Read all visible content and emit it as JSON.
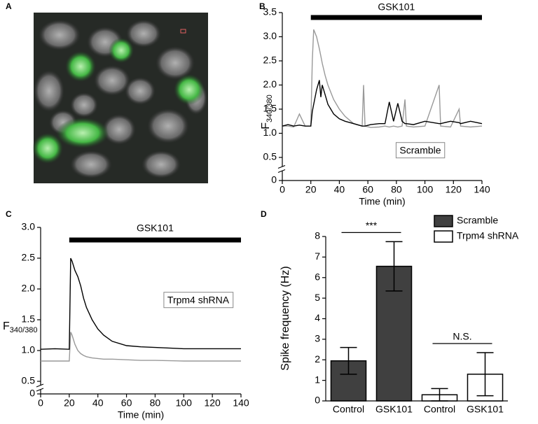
{
  "image_panel": {
    "panel_label": "A"
  },
  "chart_data": [
    {
      "type": "line",
      "panel_label": "B",
      "ylabel": "F",
      "ylabel_subscript": "340/380",
      "xlabel": "Time (min)",
      "annotation": "Scramble",
      "bar_annotation": {
        "text": "GSK101",
        "start": 20,
        "end": 140
      },
      "xlim": [
        0,
        140
      ],
      "xticks": [
        0,
        20,
        40,
        60,
        80,
        100,
        120,
        140
      ],
      "ylim": [
        0,
        3.5
      ],
      "ybreak": [
        0,
        0.5
      ],
      "yticks": [
        0,
        0.5,
        {
          "value": 1,
          "label": "1.0"
        },
        1.5,
        {
          "value": 2,
          "label": "2.0"
        },
        2.5,
        {
          "value": 3,
          "label": "3.0"
        },
        3.5
      ],
      "x": [
        0,
        4,
        8,
        12,
        16,
        20,
        21,
        22,
        24,
        26,
        27,
        28,
        30,
        32,
        36,
        40,
        44,
        50,
        56,
        57,
        58,
        62,
        68,
        72,
        75,
        78,
        81,
        84,
        86,
        87,
        92,
        100,
        110,
        111,
        118,
        124,
        125,
        132,
        140
      ],
      "series": [
        {
          "color": "#999999",
          "values": [
            1.15,
            1.15,
            1.13,
            1.4,
            1.15,
            1.15,
            2.5,
            3.15,
            3.0,
            2.75,
            2.6,
            2.45,
            2.2,
            2.0,
            1.7,
            1.5,
            1.35,
            1.2,
            1.15,
            2.0,
            1.15,
            1.12,
            1.13,
            1.15,
            1.13,
            1.15,
            1.13,
            1.15,
            1.7,
            1.15,
            1.13,
            1.15,
            2.0,
            1.15,
            1.13,
            1.5,
            1.15,
            1.13,
            1.15
          ]
        },
        {
          "color": "#000000",
          "values": [
            1.15,
            1.18,
            1.15,
            1.17,
            1.15,
            1.15,
            1.45,
            1.6,
            1.9,
            2.1,
            1.75,
            2.0,
            1.8,
            1.6,
            1.4,
            1.3,
            1.25,
            1.2,
            1.15,
            1.15,
            1.15,
            1.18,
            1.2,
            1.2,
            1.65,
            1.25,
            1.62,
            1.25,
            1.2,
            1.2,
            1.18,
            1.25,
            1.2,
            1.2,
            1.25,
            1.22,
            1.2,
            1.25,
            1.2
          ]
        }
      ]
    },
    {
      "type": "line",
      "panel_label": "C",
      "ylabel": "F",
      "ylabel_subscript": "340/380",
      "xlabel": "Time (min)",
      "annotation": "Trpm4 shRNA",
      "bar_annotation": {
        "text": "GSK101",
        "start": 20,
        "end": 140
      },
      "xlim": [
        0,
        140
      ],
      "xticks": [
        0,
        20,
        40,
        60,
        80,
        100,
        120,
        140
      ],
      "ylim": [
        0,
        3
      ],
      "ybreak": [
        0,
        0.5
      ],
      "yticks": [
        0,
        0.5,
        {
          "value": 1,
          "label": "1.0"
        },
        1.5,
        {
          "value": 2,
          "label": "2.0"
        },
        2.5,
        {
          "value": 3,
          "label": "3.0"
        }
      ],
      "x": [
        0,
        10,
        20,
        21,
        22,
        24,
        26,
        28,
        30,
        32,
        36,
        40,
        44,
        50,
        60,
        70,
        80,
        100,
        120,
        140
      ],
      "series": [
        {
          "color": "#999999",
          "values": [
            0.83,
            0.83,
            0.83,
            1.3,
            1.25,
            1.1,
            1.0,
            0.95,
            0.92,
            0.9,
            0.88,
            0.87,
            0.86,
            0.86,
            0.85,
            0.84,
            0.84,
            0.83,
            0.83,
            0.83
          ]
        },
        {
          "color": "#000000",
          "values": [
            1.02,
            1.03,
            1.02,
            2.5,
            2.45,
            2.3,
            2.2,
            2.05,
            1.85,
            1.7,
            1.5,
            1.35,
            1.25,
            1.15,
            1.08,
            1.06,
            1.05,
            1.03,
            1.03,
            1.03
          ]
        }
      ]
    },
    {
      "type": "bar",
      "panel_label": "D",
      "ylabel": "Spike frequency (Hz)",
      "categories": [
        "Control",
        "GSK101",
        "Control",
        "GSK101"
      ],
      "ylim": [
        0,
        8
      ],
      "yticks": [
        0,
        1,
        2,
        3,
        4,
        5,
        6,
        7,
        8
      ],
      "legend": "upper right",
      "series": [
        {
          "name": "Scramble",
          "color": "#404040",
          "values": [
            1.95,
            6.55,
            null,
            null
          ],
          "errors": [
            0.65,
            1.2,
            null,
            null
          ]
        },
        {
          "name": "Trpm4 shRNA",
          "color": "#ffffff",
          "values": [
            null,
            null,
            0.3,
            1.3
          ],
          "errors": [
            null,
            null,
            0.3,
            1.05
          ]
        }
      ],
      "significance": [
        {
          "label": "***",
          "from": 0,
          "to": 1
        },
        {
          "label": "N.S.",
          "from": 2,
          "to": 3
        }
      ]
    }
  ]
}
